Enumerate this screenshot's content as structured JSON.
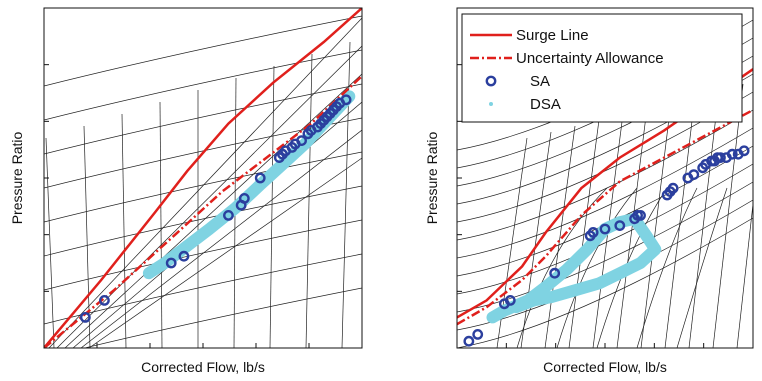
{
  "colors": {
    "surge": "#e0201c",
    "sa": "#2b3f9e",
    "dsa": "#7fd3e2",
    "grid": "#222222"
  },
  "chart_data": [
    {
      "type": "scatter",
      "xlabel": "Corrected Flow, lb/s",
      "ylabel": "Pressure Ratio",
      "xlim": [
        0,
        100
      ],
      "ylim": [
        0,
        100
      ],
      "grid": false,
      "series": [
        {
          "name": "Surge Line",
          "kind": "line",
          "style": "solid",
          "points": [
            [
              0,
              0
            ],
            [
              18,
              20
            ],
            [
              35,
              40
            ],
            [
              45,
              52
            ],
            [
              58,
              66
            ],
            [
              72,
              78
            ],
            [
              88,
              90
            ],
            [
              100,
              100
            ]
          ]
        },
        {
          "name": "Uncertainty Allowance",
          "kind": "line",
          "style": "dashdot",
          "points": [
            [
              0,
              0
            ],
            [
              22,
              17
            ],
            [
              42,
              34
            ],
            [
              56,
              46
            ],
            [
              70,
              56
            ],
            [
              84,
              66
            ],
            [
              100,
              80
            ]
          ]
        },
        {
          "name": "SA",
          "kind": "marker",
          "points": [
            [
              13,
              9
            ],
            [
              19,
              14
            ],
            [
              40,
              25
            ],
            [
              44,
              27
            ],
            [
              58,
              39
            ],
            [
              62,
              42
            ],
            [
              63,
              44
            ],
            [
              68,
              50
            ],
            [
              74,
              56
            ],
            [
              75,
              57
            ],
            [
              76,
              58
            ],
            [
              78,
              59
            ],
            [
              79,
              60
            ],
            [
              81,
              61
            ],
            [
              83,
              63
            ],
            [
              84,
              64
            ],
            [
              86,
              65
            ],
            [
              87,
              66
            ],
            [
              88,
              67
            ],
            [
              89,
              68
            ],
            [
              90,
              69
            ],
            [
              91,
              70
            ],
            [
              92,
              71
            ],
            [
              93,
              72
            ],
            [
              95,
              73
            ]
          ]
        },
        {
          "name": "DSA",
          "kind": "band",
          "points": [
            [
              33,
              22
            ],
            [
              38,
              25
            ],
            [
              45,
              30
            ],
            [
              52,
              35
            ],
            [
              60,
              41
            ],
            [
              68,
              48
            ],
            [
              75,
              54
            ],
            [
              82,
              60
            ],
            [
              88,
              66
            ],
            [
              93,
              71
            ],
            [
              96,
              74
            ]
          ]
        }
      ]
    },
    {
      "type": "scatter",
      "xlabel": "Corrected Flow, lb/s",
      "ylabel": "Pressure Ratio",
      "xlim": [
        0,
        100
      ],
      "ylim": [
        0,
        100
      ],
      "grid": false,
      "legend": "top-left",
      "legend_entries": [
        "Surge Line",
        "Uncertainty Allowance",
        "SA",
        "DSA"
      ],
      "series": [
        {
          "name": "Surge Line",
          "kind": "line",
          "style": "solid",
          "points": [
            [
              0,
              9
            ],
            [
              10,
              14
            ],
            [
              22,
              24
            ],
            [
              30,
              34
            ],
            [
              42,
              47
            ],
            [
              55,
              56
            ],
            [
              70,
              64
            ],
            [
              85,
              73
            ],
            [
              100,
              82
            ]
          ]
        },
        {
          "name": "Uncertainty Allowance",
          "kind": "line",
          "style": "dashdot",
          "points": [
            [
              0,
              7
            ],
            [
              10,
              12
            ],
            [
              22,
              20
            ],
            [
              30,
              27
            ],
            [
              42,
              39
            ],
            [
              55,
              49
            ],
            [
              70,
              56
            ],
            [
              85,
              63
            ],
            [
              100,
              70
            ]
          ]
        },
        {
          "name": "SA",
          "kind": "marker",
          "points": [
            [
              4,
              2
            ],
            [
              7,
              4
            ],
            [
              16,
              13
            ],
            [
              18,
              14
            ],
            [
              33,
              22
            ],
            [
              45,
              33
            ],
            [
              46,
              34
            ],
            [
              50,
              35
            ],
            [
              55,
              36
            ],
            [
              60,
              38
            ],
            [
              61,
              39
            ],
            [
              62,
              39
            ],
            [
              71,
              45
            ],
            [
              72,
              46
            ],
            [
              73,
              47
            ],
            [
              78,
              50
            ],
            [
              80,
              51
            ],
            [
              83,
              53
            ],
            [
              84,
              54
            ],
            [
              86,
              55
            ],
            [
              87,
              55
            ],
            [
              88,
              56
            ],
            [
              89,
              56
            ],
            [
              91,
              56
            ],
            [
              93,
              57
            ],
            [
              95,
              57
            ],
            [
              97,
              58
            ]
          ]
        },
        {
          "name": "DSA",
          "kind": "band",
          "points": [
            [
              12,
              9
            ],
            [
              16,
              11
            ],
            [
              24,
              14
            ],
            [
              30,
              18
            ],
            [
              37,
              23
            ],
            [
              44,
              29
            ],
            [
              50,
              35
            ],
            [
              55,
              37
            ],
            [
              60,
              38
            ],
            [
              64,
              33
            ],
            [
              67,
              29
            ],
            [
              62,
              25
            ],
            [
              55,
              22
            ],
            [
              48,
              19
            ],
            [
              40,
              17
            ],
            [
              32,
              15
            ],
            [
              26,
              14
            ],
            [
              20,
              12
            ]
          ]
        }
      ]
    }
  ]
}
